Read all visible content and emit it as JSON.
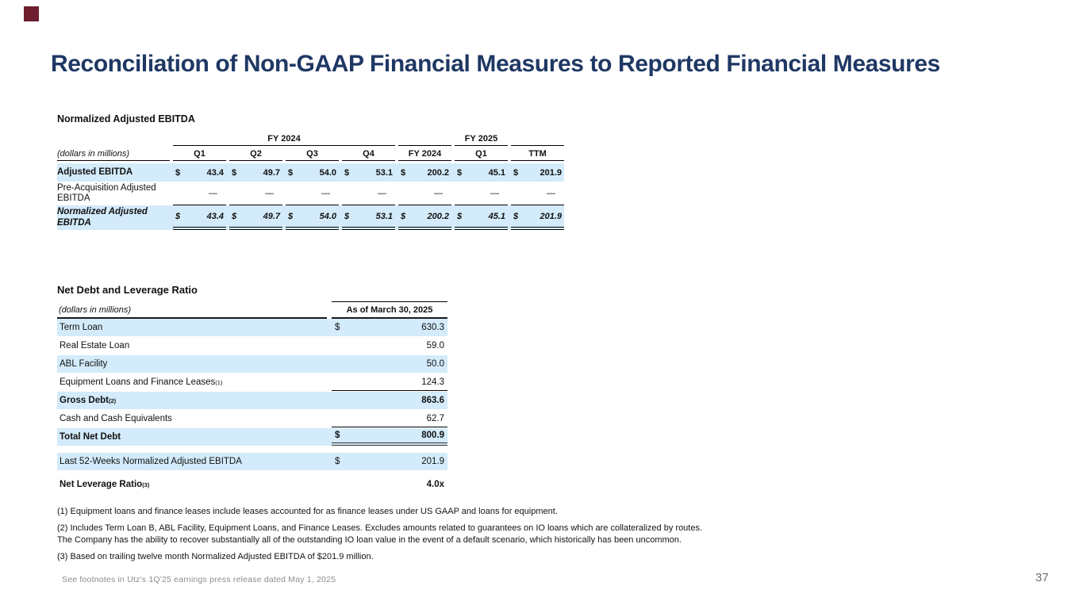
{
  "slide": {
    "title": "Reconciliation of Non-GAAP Financial Measures to Reported Financial Measures",
    "footer": "See footnotes in Utz's 1Q'25 earnings press release dated May 1, 2025",
    "page_number": "37",
    "colors": {
      "title_navy": "#1f3864",
      "row_highlight_blue": "#d3ebfa",
      "accent_square_maroon": "#6e1e2f",
      "footer_gray": "#8c8c8c"
    }
  },
  "ebitda_table": {
    "title": "Normalized Adjusted EBITDA",
    "units_label": "(dollars in millions)",
    "groups": {
      "fy2024": "FY 2024",
      "fy2025": "FY 2025"
    },
    "columns": [
      "Q1",
      "Q2",
      "Q3",
      "Q4",
      "FY 2024",
      "Q1",
      "TTM"
    ],
    "rows": [
      {
        "label": "Adjusted EBITDA",
        "currency": "$",
        "values": [
          "43.4",
          "49.7",
          "54.0",
          "53.1",
          "200.2",
          "45.1",
          "201.9"
        ]
      },
      {
        "label": "Pre-Acquisition Adjusted EBITDA",
        "currency": "",
        "values": [
          "—",
          "—",
          "—",
          "—",
          "—",
          "—",
          "—"
        ]
      },
      {
        "label": "Normalized Adjusted EBITDA",
        "currency": "$",
        "values": [
          "43.4",
          "49.7",
          "54.0",
          "53.1",
          "200.2",
          "45.1",
          "201.9"
        ]
      }
    ]
  },
  "net_debt_table": {
    "title": "Net Debt and Leverage Ratio",
    "units_label": "(dollars in millions)",
    "column_header": "As of March 30, 2025",
    "rows": [
      {
        "label": "Term Loan",
        "superscript": "",
        "currency": "$",
        "value": "630.3"
      },
      {
        "label": "Real Estate Loan",
        "superscript": "",
        "currency": "",
        "value": "59.0"
      },
      {
        "label": "ABL Facility",
        "superscript": "",
        "currency": "",
        "value": "50.0"
      },
      {
        "label": "Equipment Loans and Finance Leases",
        "superscript": "(1)",
        "currency": "",
        "value": "124.3"
      },
      {
        "label": "Gross Debt",
        "superscript": "(2)",
        "currency": "",
        "value": "863.6"
      },
      {
        "label": "Cash and Cash Equivalents",
        "superscript": "",
        "currency": "",
        "value": "62.7"
      },
      {
        "label": "Total Net Debt",
        "superscript": "",
        "currency": "$",
        "value": "800.9"
      },
      {
        "label": "Last 52-Weeks Normalized Adjusted EBITDA",
        "superscript": "",
        "currency": "$",
        "value": "201.9"
      },
      {
        "label": "Net Leverage Ratio",
        "superscript": "(3)",
        "currency": "",
        "value": "4.0x"
      }
    ]
  },
  "footnotes": [
    "(1) Equipment loans and finance leases include leases accounted for as finance leases under US GAAP and loans for equipment.",
    "(2) Includes Term Loan B, ABL Facility, Equipment Loans, and Finance Leases. Excludes amounts related to guarantees on IO loans which are collateralized by routes. The Company has the ability to recover substantially all of the outstanding IO loan value in the event of a default scenario, which historically has been uncommon.",
    "(3) Based on trailing twelve month Normalized Adjusted EBITDA of $201.9 million."
  ]
}
